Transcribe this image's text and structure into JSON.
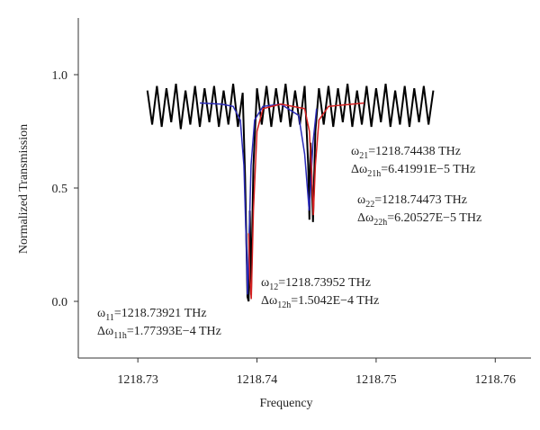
{
  "chart_data": {
    "type": "line",
    "x_label": "Frequency",
    "y_label": "Normalized Transmission",
    "xlim": [
      1218.725,
      1218.763
    ],
    "ylim": [
      -0.25,
      1.25
    ],
    "xticks": [
      1218.73,
      1218.74,
      1218.75,
      1218.76
    ],
    "yticks": [
      {
        "value": 1,
        "label": "1.0"
      },
      0.5,
      {
        "value": 0,
        "label": "0.0"
      }
    ],
    "series": [
      {
        "color": "#000000",
        "x": [
          1218.7308,
          1218.7312,
          1218.7316,
          1218.732,
          1218.7324,
          1218.7328,
          1218.7332,
          1218.7336,
          1218.734,
          1218.7344,
          1218.7348,
          1218.7352,
          1218.7356,
          1218.736,
          1218.7364,
          1218.7368,
          1218.7372,
          1218.7376,
          1218.738,
          1218.7384,
          1218.7388,
          1218.739,
          1218.7392,
          1218.7393,
          1218.7394,
          1218.7395,
          1218.7397,
          1218.74,
          1218.7404,
          1218.7408,
          1218.7412,
          1218.7416,
          1218.742,
          1218.7424,
          1218.7428,
          1218.7432,
          1218.7436,
          1218.744,
          1218.7443,
          1218.7444,
          1218.7445,
          1218.7447,
          1218.7449,
          1218.7452,
          1218.7456,
          1218.746,
          1218.7464,
          1218.7468,
          1218.7472,
          1218.7476,
          1218.748,
          1218.7484,
          1218.7488,
          1218.7492,
          1218.7496,
          1218.75,
          1218.7504,
          1218.7508,
          1218.7512,
          1218.7516,
          1218.752,
          1218.7524,
          1218.7528,
          1218.7532,
          1218.7536,
          1218.754,
          1218.7544,
          1218.7548
        ],
        "values": [
          0.93,
          0.78,
          0.95,
          0.77,
          0.94,
          0.79,
          0.96,
          0.76,
          0.93,
          0.78,
          0.95,
          0.77,
          0.94,
          0.79,
          0.95,
          0.77,
          0.93,
          0.78,
          0.96,
          0.77,
          0.92,
          0.55,
          0.02,
          0.0,
          0.4,
          0.03,
          0.6,
          0.94,
          0.78,
          0.95,
          0.77,
          0.94,
          0.79,
          0.96,
          0.77,
          0.93,
          0.78,
          0.95,
          0.6,
          0.36,
          0.7,
          0.35,
          0.75,
          0.94,
          0.78,
          0.95,
          0.77,
          0.94,
          0.79,
          0.96,
          0.77,
          0.93,
          0.78,
          0.95,
          0.77,
          0.94,
          0.79,
          0.96,
          0.77,
          0.93,
          0.78,
          0.95,
          0.77,
          0.94,
          0.79,
          0.95,
          0.78,
          0.93
        ]
      },
      {
        "color": "#2b2bb8",
        "x": [
          1218.7352,
          1218.737,
          1218.738,
          1218.7386,
          1218.7389,
          1218.7391,
          1218.73921,
          1218.7393,
          1218.7395,
          1218.7398,
          1218.7405,
          1218.742,
          1218.7435,
          1218.744,
          1218.74438,
          1218.7447,
          1218.745
        ],
        "values": [
          0.875,
          0.87,
          0.86,
          0.8,
          0.6,
          0.25,
          0.03,
          0.2,
          0.6,
          0.8,
          0.86,
          0.87,
          0.82,
          0.65,
          0.4,
          0.7,
          0.85
        ]
      },
      {
        "color": "#d42020",
        "x": [
          1218.7393,
          1218.7394,
          1218.73952,
          1218.7397,
          1218.74,
          1218.7405,
          1218.742,
          1218.744,
          1218.7444,
          1218.7446,
          1218.74473,
          1218.7449,
          1218.7452,
          1218.746,
          1218.749
        ],
        "values": [
          0.3,
          0.1,
          0.01,
          0.4,
          0.75,
          0.85,
          0.87,
          0.85,
          0.75,
          0.55,
          0.38,
          0.6,
          0.8,
          0.86,
          0.875
        ]
      }
    ],
    "annotations": [
      {
        "lines": [
          {
            "symbol": "ω",
            "sub": "11",
            "text": "=1218.73921 THz"
          },
          {
            "symbol": "Δω",
            "sub": "11h",
            "text": "=1.77393E−4 THz"
          }
        ]
      },
      {
        "lines": [
          {
            "symbol": "ω",
            "sub": "12",
            "text": "=1218.73952 THz"
          },
          {
            "symbol": "Δω",
            "sub": "12h",
            "text": "=1.5042E−4 THz"
          }
        ]
      },
      {
        "lines": [
          {
            "symbol": "ω",
            "sub": "21",
            "text": "=1218.74438 THz"
          },
          {
            "symbol": "Δω",
            "sub": "21h",
            "text": "=6.41991E−5 THz"
          }
        ]
      },
      {
        "lines": [
          {
            "symbol": "ω",
            "sub": "22",
            "text": "=1218.74473 THz"
          },
          {
            "symbol": "Δω",
            "sub": "22h",
            "text": "=6.20527E−5 THz"
          }
        ]
      }
    ]
  }
}
